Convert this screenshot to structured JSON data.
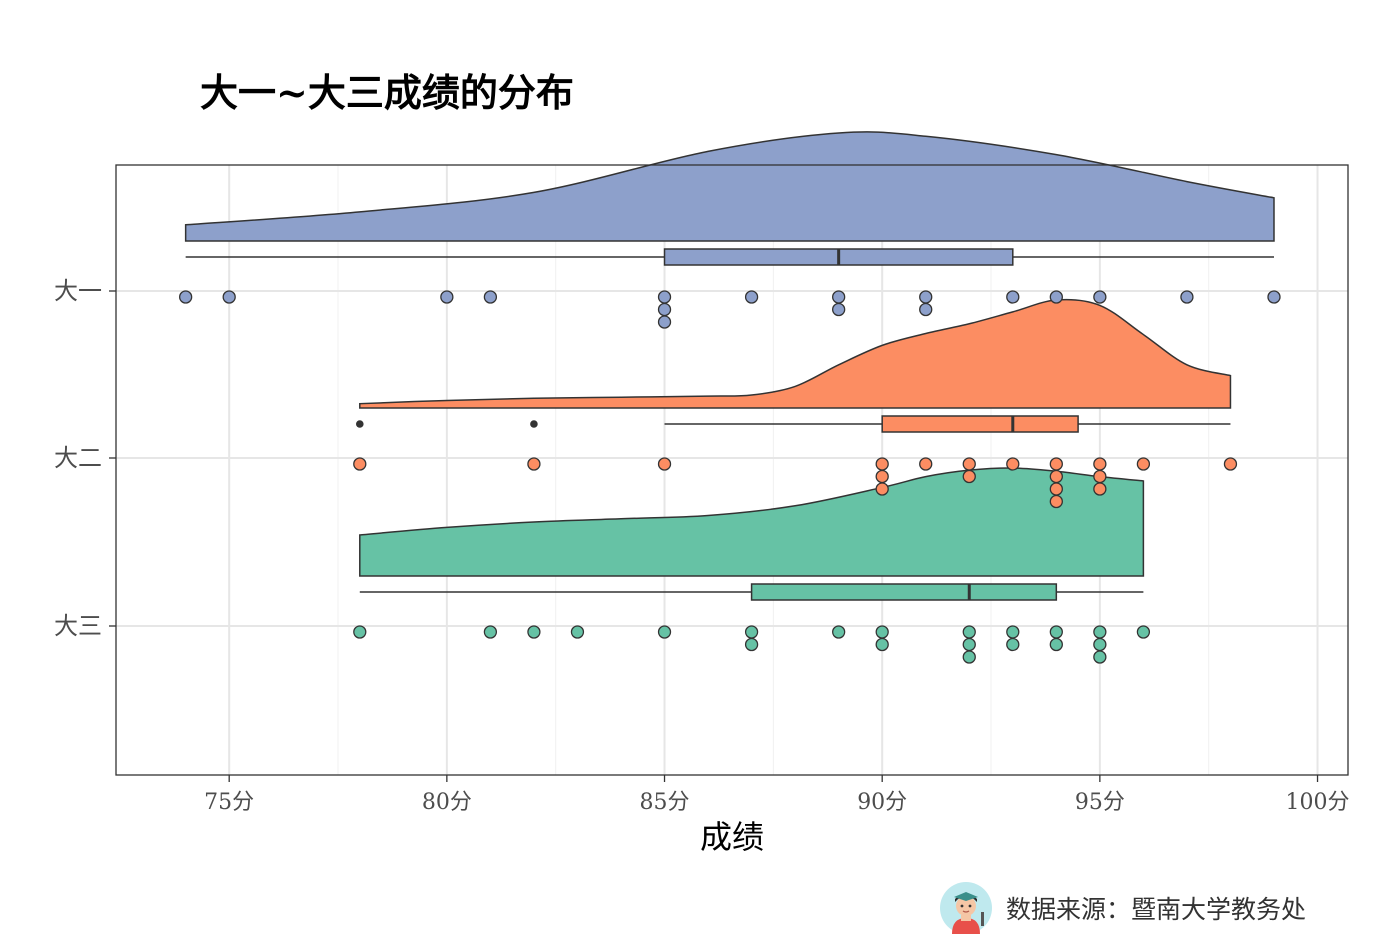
{
  "chart_data": {
    "type": "raincloud",
    "title": "大一~大三成绩的分布",
    "xlabel": "成绩",
    "ylabel": "",
    "xlim": [
      72.4,
      100.7
    ],
    "x_ticks": [
      {
        "value": 75,
        "label": "75分"
      },
      {
        "value": 80,
        "label": "80分"
      },
      {
        "value": 85,
        "label": "85分"
      },
      {
        "value": 90,
        "label": "90分"
      },
      {
        "value": 95,
        "label": "95分"
      },
      {
        "value": 100,
        "label": "100分"
      }
    ],
    "grid": true,
    "legend": "none",
    "series": [
      {
        "name": "大一",
        "color": "#8DA0CB",
        "box": {
          "min": 74,
          "q1": 85,
          "median": 89,
          "q3": 93,
          "max": 99,
          "outliers": []
        },
        "points": [
          74,
          75,
          80,
          81,
          85,
          85,
          85,
          87,
          89,
          89,
          91,
          91,
          93,
          94,
          95,
          97,
          99
        ],
        "density": [
          [
            74,
            0.15
          ],
          [
            78,
            0.27
          ],
          [
            82,
            0.45
          ],
          [
            86,
            0.83
          ],
          [
            89,
            1.0
          ],
          [
            91,
            0.97
          ],
          [
            94,
            0.8
          ],
          [
            97,
            0.55
          ],
          [
            99,
            0.4
          ]
        ]
      },
      {
        "name": "大二",
        "color": "#FC8D62",
        "box": {
          "min": 85,
          "q1": 90,
          "median": 93,
          "q3": 94.5,
          "max": 98,
          "outliers": [
            78,
            82
          ]
        },
        "points": [
          78,
          82,
          85,
          90,
          90,
          90,
          91,
          92,
          92,
          93,
          94,
          94,
          94,
          94,
          95,
          95,
          95,
          96,
          98
        ],
        "density": [
          [
            78,
            0.04
          ],
          [
            80,
            0.07
          ],
          [
            82,
            0.09
          ],
          [
            84,
            0.1
          ],
          [
            86,
            0.11
          ],
          [
            87,
            0.12
          ],
          [
            88,
            0.2
          ],
          [
            89,
            0.4
          ],
          [
            90,
            0.58
          ],
          [
            91,
            0.69
          ],
          [
            92,
            0.78
          ],
          [
            93,
            0.89
          ],
          [
            94,
            1.0
          ],
          [
            95,
            0.95
          ],
          [
            96,
            0.68
          ],
          [
            97,
            0.4
          ],
          [
            98,
            0.3
          ]
        ]
      },
      {
        "name": "大三",
        "color": "#66C2A5",
        "box": {
          "min": 78,
          "q1": 87,
          "median": 92,
          "q3": 94,
          "max": 96,
          "outliers": []
        },
        "points": [
          78,
          81,
          82,
          83,
          85,
          87,
          87,
          89,
          90,
          90,
          92,
          92,
          92,
          93,
          93,
          94,
          94,
          95,
          95,
          95,
          96
        ],
        "density": [
          [
            78,
            0.38
          ],
          [
            80,
            0.45
          ],
          [
            82,
            0.5
          ],
          [
            84,
            0.53
          ],
          [
            86,
            0.56
          ],
          [
            88,
            0.65
          ],
          [
            90,
            0.82
          ],
          [
            91,
            0.92
          ],
          [
            92,
            0.98
          ],
          [
            93,
            1.0
          ],
          [
            94,
            0.97
          ],
          [
            95,
            0.92
          ],
          [
            96,
            0.88
          ]
        ]
      }
    ]
  },
  "source": {
    "text": "数据来源：暨南大学教务处",
    "icon": "teacher-avatar-icon"
  }
}
